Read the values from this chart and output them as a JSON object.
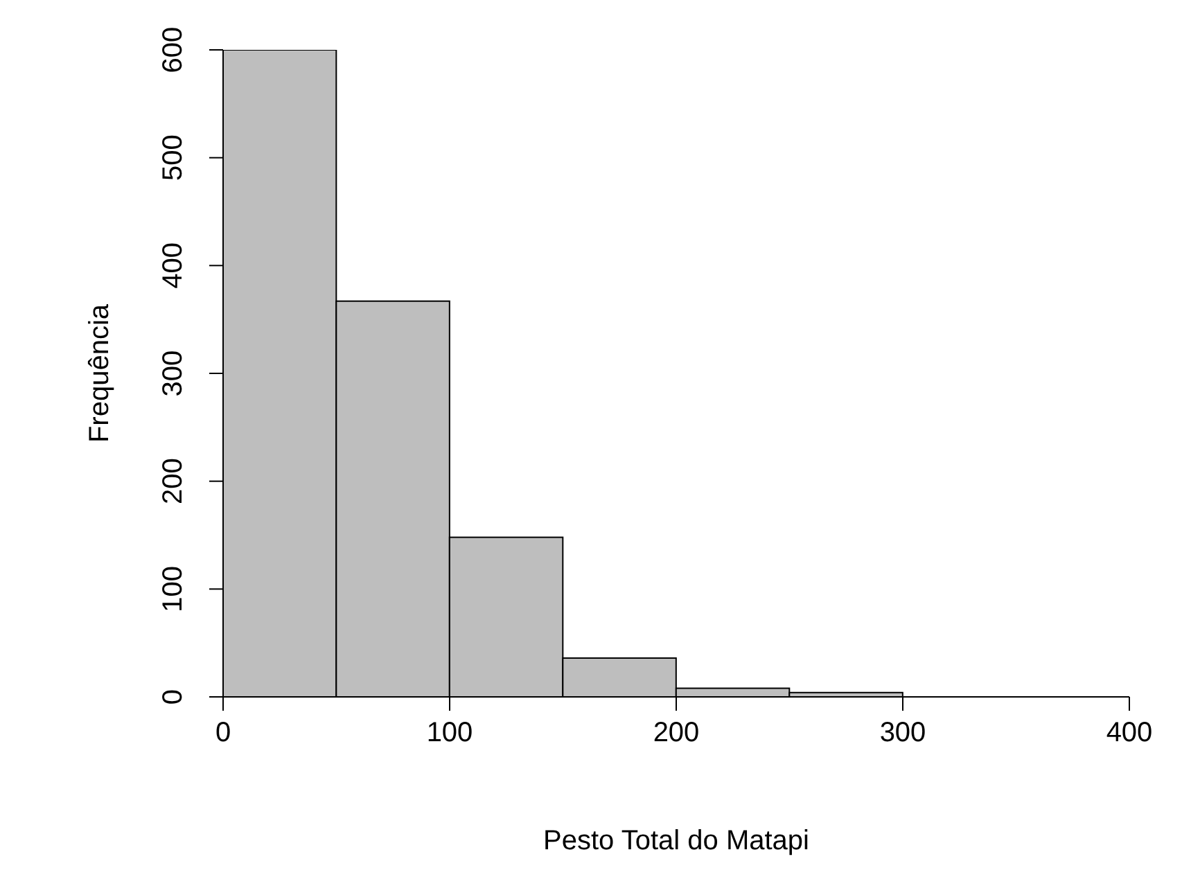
{
  "chart_data": {
    "type": "histogram",
    "xlabel": "Pesto Total do Matapi",
    "ylabel": "Frequência",
    "bins": [
      0,
      50,
      100,
      150,
      200,
      250,
      300,
      350,
      400
    ],
    "values": [
      600,
      367,
      148,
      36,
      8,
      4,
      0,
      0
    ],
    "color": "#bebebe",
    "xlim": [
      0,
      400
    ],
    "xticks": [
      0,
      100,
      200,
      300,
      400
    ],
    "ylim": [
      0,
      600
    ],
    "yticks": [
      0,
      100,
      200,
      300,
      400,
      500,
      600
    ],
    "grid": false,
    "legend": false
  }
}
